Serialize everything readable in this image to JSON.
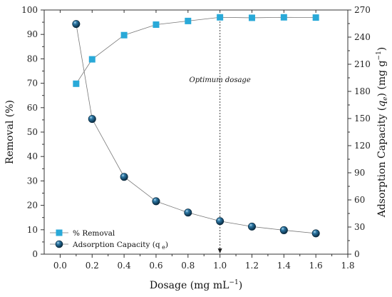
{
  "chart_data": {
    "type": "line",
    "xlabel": "Dosage (mg mL",
    "xlabel_sup": "−1",
    "xlabel_close": ")",
    "xlim": [
      -0.1,
      1.8
    ],
    "xticks": [
      0.0,
      0.2,
      0.4,
      0.6,
      0.8,
      1.0,
      1.2,
      1.4,
      1.6,
      1.8
    ],
    "xtick_labels": [
      "0.0",
      "0.2",
      "0.4",
      "0.6",
      "0.8",
      "1.0",
      "1.2",
      "1.4",
      "1.6",
      "1.8"
    ],
    "y_left": {
      "label": "Removal (%)",
      "lim": [
        0,
        100
      ],
      "ticks": [
        0,
        10,
        20,
        30,
        40,
        50,
        60,
        70,
        80,
        90,
        100
      ],
      "tick_labels": [
        "0",
        "10",
        "20",
        "30",
        "40",
        "50",
        "60",
        "70",
        "80",
        "90",
        "100"
      ]
    },
    "y_right": {
      "label_pre": "Adsorption Capacity (",
      "label_var": "q",
      "label_sub": "e",
      "label_mid": ") (mg g",
      "label_sup": "−1",
      "label_close": ")",
      "lim": [
        0,
        270
      ],
      "ticks": [
        0,
        30,
        60,
        90,
        120,
        150,
        180,
        210,
        240,
        270
      ],
      "tick_labels": [
        "0",
        "30",
        "60",
        "90",
        "120",
        "150",
        "180",
        "210",
        "240",
        "270"
      ]
    },
    "series": [
      {
        "name": "% Removal",
        "axis": "left",
        "marker": "square",
        "color": "#29a9d8",
        "x": [
          0.1,
          0.2,
          0.4,
          0.6,
          0.8,
          1.0,
          1.2,
          1.4,
          1.6
        ],
        "y": [
          69.8,
          79.8,
          89.7,
          94.0,
          95.5,
          97.0,
          96.8,
          97.0,
          96.9
        ]
      },
      {
        "name": "Adsorption Capacity (q",
        "name_sub": "e",
        "name_close": ")",
        "axis": "right",
        "marker": "sphere",
        "color": "#0f3f5e",
        "x": [
          0.1,
          0.2,
          0.4,
          0.6,
          0.8,
          1.0,
          1.2,
          1.4,
          1.6
        ],
        "y": [
          254.5,
          149.5,
          85.5,
          58.5,
          46.0,
          36.5,
          30.5,
          26.5,
          23.0
        ]
      }
    ],
    "line_color": "#777777",
    "annotation": {
      "text": "Optimum dosage",
      "x": 1.0
    },
    "legend_position": "bottom-left",
    "grid": false
  }
}
